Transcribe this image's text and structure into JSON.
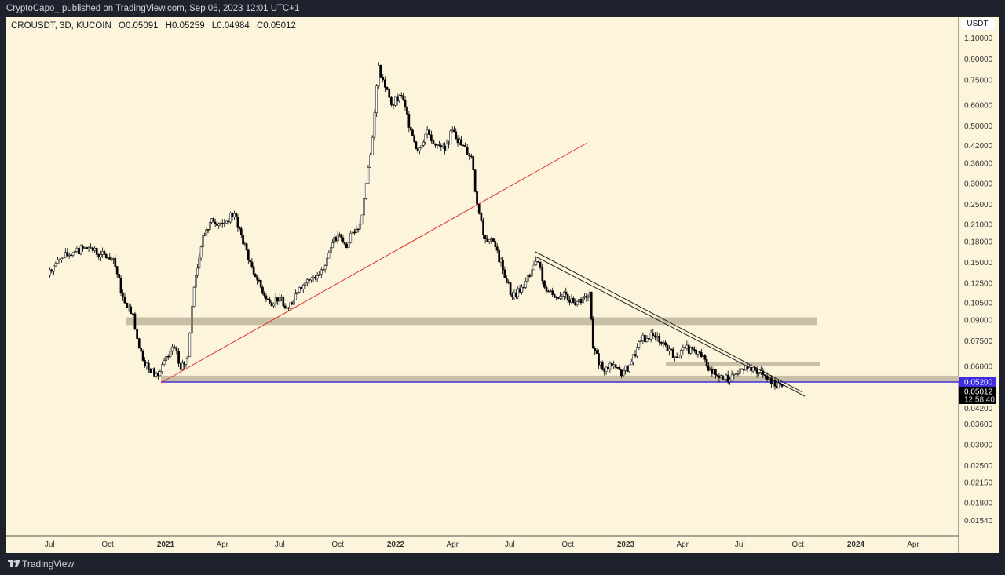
{
  "header": {
    "publish_line": "CryptoCapo_ published on TradingView.com, Sep 06, 2023 12:01 UTC+1"
  },
  "legend": {
    "symbol": "CROUSDT, 3D, KUCOIN",
    "open": "O0.05091",
    "high": "H0.05259",
    "low": "L0.04984",
    "close": "C0.05012"
  },
  "currency": "USDT",
  "price_tags": {
    "level": "0.05200",
    "last": "0.05012",
    "countdown": "12:58:40"
  },
  "footer": {
    "brand": "TradingView"
  },
  "colors": {
    "up": "#ffffff",
    "down": "#000000",
    "trend_red": "#e03030",
    "level_blue": "#3f2ee0",
    "zone": "#c8bfa6"
  },
  "chart_data": {
    "type": "candlestick",
    "title": "CROUSDT, 3D, KUCOIN",
    "yscale": "log",
    "ylim": [
      0.0145,
      1.15
    ],
    "y_ticks": [
      "1.10000",
      "0.90000",
      "0.75000",
      "0.60000",
      "0.50000",
      "0.42000",
      "0.36000",
      "0.30000",
      "0.25000",
      "0.21000",
      "0.18000",
      "0.15000",
      "0.12500",
      "0.10500",
      "0.09000",
      "0.07500",
      "0.06000",
      "0.04200",
      "0.03600",
      "0.03000",
      "0.02500",
      "0.02150",
      "0.01800",
      "0.01540"
    ],
    "x_ticks": [
      {
        "label": "Jul",
        "date": "2020-07-01"
      },
      {
        "label": "Oct",
        "date": "2020-10-01"
      },
      {
        "label": "2021",
        "date": "2021-01-01"
      },
      {
        "label": "Apr",
        "date": "2021-04-01"
      },
      {
        "label": "Jul",
        "date": "2021-07-01"
      },
      {
        "label": "Oct",
        "date": "2021-10-01"
      },
      {
        "label": "2022",
        "date": "2022-01-01"
      },
      {
        "label": "Apr",
        "date": "2022-04-01"
      },
      {
        "label": "Jul",
        "date": "2022-07-01"
      },
      {
        "label": "Oct",
        "date": "2022-10-01"
      },
      {
        "label": "2023",
        "date": "2023-01-01"
      },
      {
        "label": "Apr",
        "date": "2023-04-01"
      },
      {
        "label": "Jul",
        "date": "2023-07-01"
      },
      {
        "label": "Oct",
        "date": "2023-10-01"
      },
      {
        "label": "2024",
        "date": "2024-01-01"
      },
      {
        "label": "Apr",
        "date": "2024-04-01"
      }
    ],
    "closes": [
      [
        "2020-07-01",
        0.14
      ],
      [
        "2020-07-20",
        0.155
      ],
      [
        "2020-08-10",
        0.165
      ],
      [
        "2020-09-01",
        0.17
      ],
      [
        "2020-09-20",
        0.16
      ],
      [
        "2020-10-10",
        0.155
      ],
      [
        "2020-10-25",
        0.11
      ],
      [
        "2020-11-10",
        0.095
      ],
      [
        "2020-11-20",
        0.07
      ],
      [
        "2020-12-05",
        0.058
      ],
      [
        "2020-12-20",
        0.055
      ],
      [
        "2021-01-05",
        0.065
      ],
      [
        "2021-01-15",
        0.07
      ],
      [
        "2021-01-25",
        0.058
      ],
      [
        "2021-02-05",
        0.065
      ],
      [
        "2021-02-15",
        0.12
      ],
      [
        "2021-03-01",
        0.19
      ],
      [
        "2021-03-15",
        0.22
      ],
      [
        "2021-04-01",
        0.21
      ],
      [
        "2021-04-20",
        0.23
      ],
      [
        "2021-05-01",
        0.19
      ],
      [
        "2021-05-15",
        0.15
      ],
      [
        "2021-06-01",
        0.12
      ],
      [
        "2021-06-15",
        0.105
      ],
      [
        "2021-07-01",
        0.11
      ],
      [
        "2021-07-15",
        0.1
      ],
      [
        "2021-08-01",
        0.12
      ],
      [
        "2021-08-20",
        0.13
      ],
      [
        "2021-09-05",
        0.14
      ],
      [
        "2021-09-20",
        0.17
      ],
      [
        "2021-10-01",
        0.19
      ],
      [
        "2021-10-15",
        0.17
      ],
      [
        "2021-10-25",
        0.195
      ],
      [
        "2021-11-05",
        0.21
      ],
      [
        "2021-11-15",
        0.3
      ],
      [
        "2021-11-25",
        0.45
      ],
      [
        "2021-12-05",
        0.85
      ],
      [
        "2021-12-15",
        0.7
      ],
      [
        "2021-12-25",
        0.6
      ],
      [
        "2022-01-10",
        0.65
      ],
      [
        "2022-01-25",
        0.48
      ],
      [
        "2022-02-05",
        0.4
      ],
      [
        "2022-02-20",
        0.48
      ],
      [
        "2022-03-05",
        0.42
      ],
      [
        "2022-03-20",
        0.4
      ],
      [
        "2022-04-01",
        0.48
      ],
      [
        "2022-04-15",
        0.42
      ],
      [
        "2022-05-01",
        0.38
      ],
      [
        "2022-05-10",
        0.25
      ],
      [
        "2022-05-20",
        0.19
      ],
      [
        "2022-06-05",
        0.18
      ],
      [
        "2022-06-20",
        0.14
      ],
      [
        "2022-07-05",
        0.11
      ],
      [
        "2022-07-20",
        0.12
      ],
      [
        "2022-08-05",
        0.14
      ],
      [
        "2022-08-15",
        0.15
      ],
      [
        "2022-08-25",
        0.12
      ],
      [
        "2022-09-10",
        0.11
      ],
      [
        "2022-09-25",
        0.115
      ],
      [
        "2022-10-10",
        0.105
      ],
      [
        "2022-10-25",
        0.11
      ],
      [
        "2022-11-05",
        0.115
      ],
      [
        "2022-11-10",
        0.07
      ],
      [
        "2022-11-25",
        0.058
      ],
      [
        "2022-12-10",
        0.06
      ],
      [
        "2022-12-25",
        0.055
      ],
      [
        "2023-01-10",
        0.062
      ],
      [
        "2023-01-25",
        0.075
      ],
      [
        "2023-02-10",
        0.08
      ],
      [
        "2023-02-20",
        0.078
      ],
      [
        "2023-03-05",
        0.072
      ],
      [
        "2023-03-20",
        0.065
      ],
      [
        "2023-04-05",
        0.07
      ],
      [
        "2023-04-20",
        0.069
      ],
      [
        "2023-05-01",
        0.065
      ],
      [
        "2023-05-15",
        0.058
      ],
      [
        "2023-06-01",
        0.055
      ],
      [
        "2023-06-15",
        0.053
      ],
      [
        "2023-06-25",
        0.056
      ],
      [
        "2023-07-10",
        0.06
      ],
      [
        "2023-07-25",
        0.058
      ],
      [
        "2023-08-10",
        0.055
      ],
      [
        "2023-08-20",
        0.051
      ],
      [
        "2023-09-06",
        0.0501
      ]
    ],
    "zones": [
      {
        "from": 0.086,
        "to": 0.092
      },
      {
        "from": 0.06,
        "to": 0.062
      },
      {
        "from": 0.052,
        "to": 0.055
      }
    ],
    "horizontal_level": 0.052
  }
}
